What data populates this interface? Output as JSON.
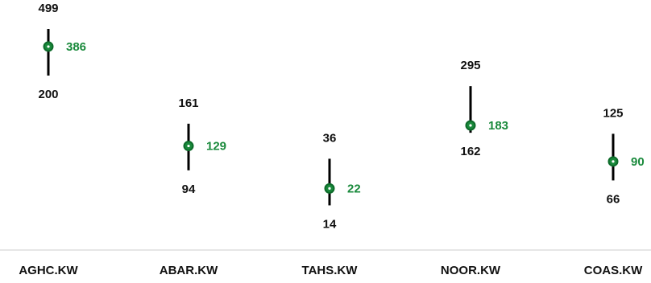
{
  "chart_data": {
    "type": "scatter",
    "categories": [
      "AGHC.KW",
      "ABAR.KW",
      "TAHS.KW",
      "NOOR.KW",
      "COAS.KW"
    ],
    "series": [
      {
        "name": "",
        "role": "high",
        "values": [
          499,
          161,
          36,
          295,
          125
        ]
      },
      {
        "name": "",
        "role": "current",
        "values": [
          386,
          129,
          22,
          183,
          90
        ]
      },
      {
        "name": "",
        "role": "low",
        "values": [
          200,
          94,
          14,
          162,
          66
        ]
      }
    ],
    "title": "",
    "xlabel": "",
    "ylabel": "",
    "grid": false,
    "legend": "none",
    "colors": {
      "range_line": "#000000",
      "marker": "#1a8a3c",
      "marker_ring": "#0d6b2a",
      "current_label": "#1a8a3c",
      "range_label": "#111111",
      "axis": "#cccccc",
      "category_label": "#111111"
    }
  }
}
